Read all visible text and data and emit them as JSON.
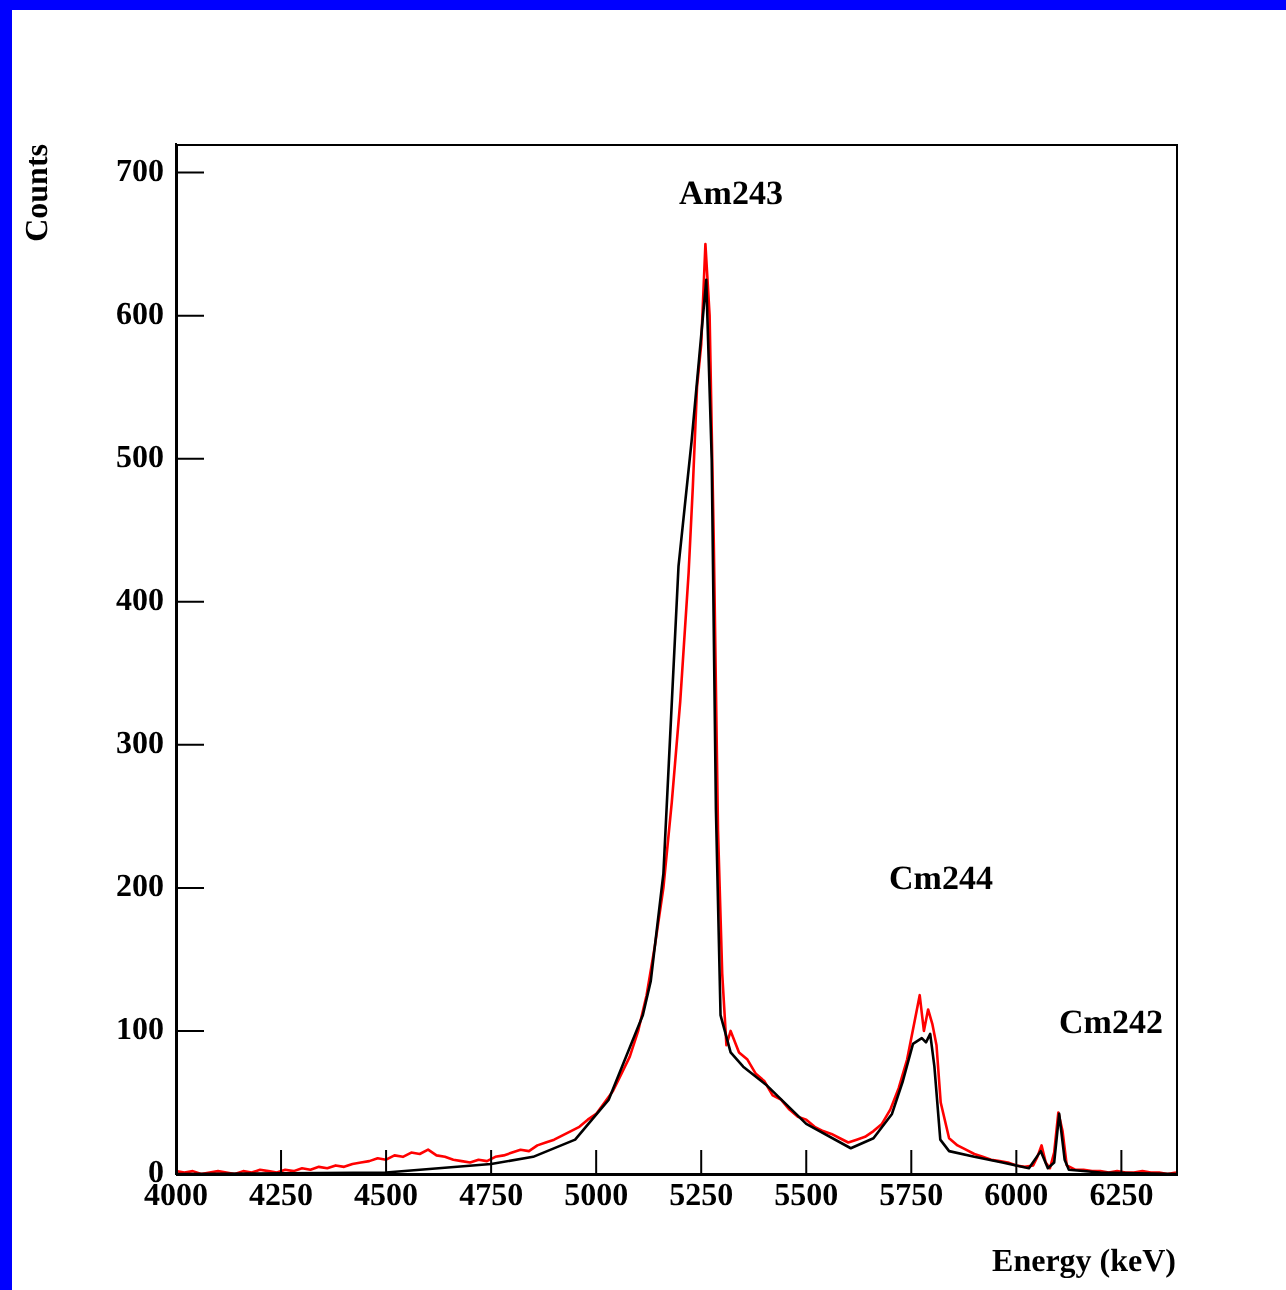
{
  "chart_data": {
    "type": "line",
    "xlabel": "Energy (keV)",
    "ylabel": "Counts",
    "xlim": [
      4000,
      6380
    ],
    "xticks": [
      4000,
      4250,
      4500,
      4750,
      5000,
      5250,
      5500,
      5750,
      6000,
      6250
    ],
    "ylim": [
      0,
      720
    ],
    "yticks": [
      0,
      100,
      200,
      300,
      400,
      500,
      600,
      700
    ],
    "grid": false,
    "legend": false,
    "marker": "none",
    "annotations": [
      "Am243",
      "Cm244",
      "Cm242"
    ],
    "series": [
      {
        "color": "#ff0000",
        "x": [
          4000,
          4020,
          4040,
          4060,
          4080,
          4100,
          4120,
          4140,
          4160,
          4180,
          4200,
          4220,
          4240,
          4260,
          4280,
          4300,
          4320,
          4340,
          4360,
          4380,
          4400,
          4420,
          4440,
          4460,
          4480,
          4500,
          4520,
          4540,
          4560,
          4580,
          4600,
          4620,
          4640,
          4660,
          4680,
          4700,
          4720,
          4740,
          4760,
          4780,
          4800,
          4820,
          4840,
          4860,
          4880,
          4900,
          4920,
          4940,
          4960,
          4980,
          5000,
          5020,
          5040,
          5060,
          5080,
          5100,
          5120,
          5140,
          5160,
          5180,
          5200,
          5220,
          5230,
          5240,
          5250,
          5260,
          5270,
          5280,
          5290,
          5300,
          5310,
          5320,
          5340,
          5360,
          5380,
          5400,
          5420,
          5440,
          5460,
          5480,
          5500,
          5520,
          5540,
          5560,
          5580,
          5600,
          5620,
          5640,
          5660,
          5680,
          5700,
          5720,
          5740,
          5760,
          5770,
          5780,
          5790,
          5800,
          5810,
          5820,
          5840,
          5860,
          5880,
          5900,
          5920,
          5940,
          5960,
          5980,
          6000,
          6020,
          6040,
          6050,
          6060,
          6070,
          6080,
          6090,
          6100,
          6110,
          6120,
          6140,
          6160,
          6180,
          6200,
          6220,
          6240,
          6260,
          6280,
          6300,
          6320,
          6340,
          6360,
          6380
        ],
        "values": [
          2,
          1,
          2,
          0,
          1,
          2,
          1,
          0,
          2,
          1,
          3,
          2,
          1,
          3,
          2,
          4,
          3,
          5,
          4,
          6,
          5,
          7,
          8,
          9,
          11,
          10,
          13,
          12,
          15,
          14,
          17,
          13,
          12,
          10,
          9,
          8,
          10,
          9,
          12,
          13,
          15,
          17,
          16,
          20,
          22,
          24,
          27,
          30,
          33,
          38,
          42,
          50,
          58,
          70,
          82,
          100,
          125,
          160,
          200,
          260,
          330,
          420,
          480,
          550,
          580,
          650,
          600,
          440,
          240,
          140,
          90,
          100,
          85,
          80,
          70,
          65,
          55,
          52,
          45,
          40,
          38,
          33,
          30,
          28,
          25,
          22,
          24,
          26,
          30,
          35,
          45,
          60,
          80,
          110,
          125,
          100,
          115,
          105,
          90,
          50,
          25,
          20,
          17,
          14,
          12,
          10,
          9,
          8,
          6,
          5,
          6,
          12,
          20,
          8,
          4,
          15,
          43,
          30,
          6,
          3,
          3,
          2,
          2,
          1,
          2,
          1,
          1,
          2,
          1,
          1,
          0,
          1
        ]
      },
      {
        "color": "#000000",
        "x": [
          4000,
          4500,
          4750,
          4850,
          4950,
          5030,
          5111,
          5130,
          5160,
          5196,
          5227,
          5245,
          5262,
          5275,
          5285,
          5296,
          5320,
          5350,
          5406,
          5500,
          5606,
          5660,
          5704,
          5730,
          5754,
          5775,
          5785,
          5795,
          5805,
          5819,
          5840,
          5900,
          5967,
          6030,
          6058,
          6075,
          6090,
          6102,
          6115,
          6125,
          6200,
          6380
        ],
        "values": [
          0,
          1,
          7,
          12,
          24,
          52,
          111,
          135,
          210,
          425,
          512,
          570,
          625,
          500,
          255,
          111,
          85,
          75,
          62,
          35,
          18,
          25,
          42,
          65,
          91,
          95,
          92,
          98,
          75,
          24,
          16,
          12,
          8,
          4,
          16,
          4,
          8,
          42,
          10,
          3,
          1,
          0
        ]
      }
    ]
  }
}
